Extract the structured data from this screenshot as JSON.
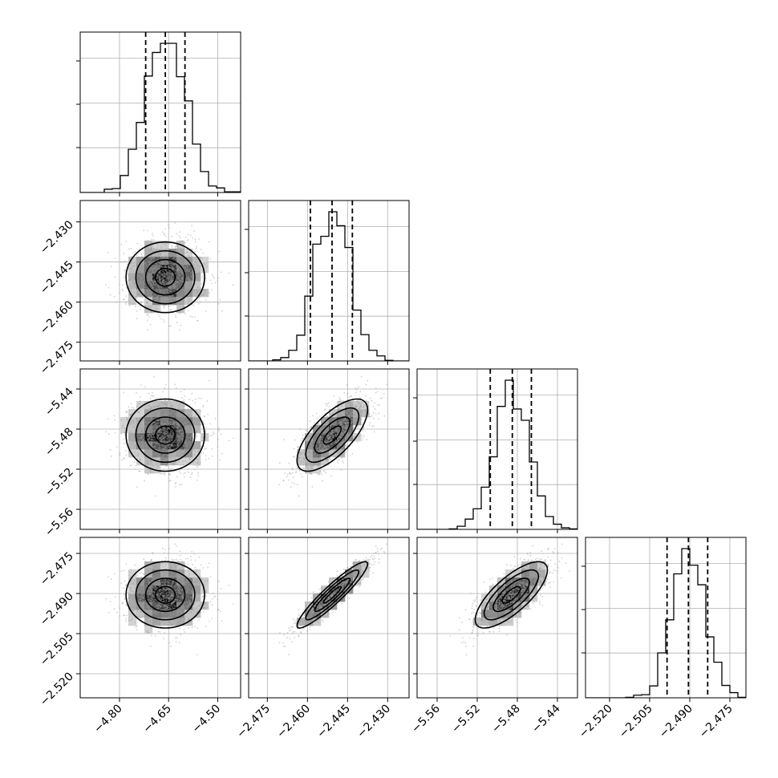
{
  "colors": {
    "background": "#ffffff",
    "frame": "#000000",
    "grid": "#b0b0b0",
    "histogram": "#000000",
    "quantile_line": "#000000",
    "sample_points": "#9a9a9a",
    "density_dark": "#000000",
    "density_light": "#f2f2f2"
  },
  "chart_data": {
    "type": "corner",
    "parameters": [
      {
        "name": "",
        "range": [
          -4.92,
          -4.43
        ],
        "ticks": [
          -4.8,
          -4.65,
          -4.5
        ],
        "tick_labels": [
          "−4.80",
          "−4.65",
          "−4.50"
        ],
        "mean": -4.66,
        "std": 0.06,
        "quantiles": [
          -4.72,
          -4.66,
          -4.6
        ]
      },
      {
        "name": "",
        "range": [
          -2.482,
          -2.422
        ],
        "ticks": [
          -2.43,
          -2.445,
          -2.46,
          -2.475
        ],
        "tick_labels": [
          "−2.430",
          "−2.445",
          "−2.460",
          "−2.475"
        ],
        "mean": -2.4507,
        "std": 0.0066,
        "quantiles": [
          -2.4589,
          -2.4508,
          -2.4432
        ]
      },
      {
        "name": "",
        "range": [
          -5.58,
          -5.42
        ],
        "ticks": [
          -5.44,
          -5.48,
          -5.52,
          -5.56
        ],
        "tick_labels": [
          "−5.44",
          "−5.48",
          "−5.52",
          "−5.56"
        ],
        "mean": -5.486,
        "std": 0.018,
        "quantiles": [
          -5.507,
          -5.485,
          -5.466
        ]
      },
      {
        "name": "",
        "range": [
          -2.529,
          -2.469
        ],
        "ticks": [
          -2.475,
          -2.49,
          -2.505,
          -2.52
        ],
        "tick_labels": [
          "−2.475",
          "−2.490",
          "−2.505",
          "−2.520"
        ],
        "mean": -2.4905,
        "std": 0.0062,
        "quantiles": [
          -2.4985,
          -2.4905,
          -2.4833
        ]
      }
    ],
    "correlations": [
      [
        1.0,
        0.0,
        0.0,
        0.0
      ],
      [
        0.0,
        1.0,
        0.7,
        0.93
      ],
      [
        0.0,
        0.7,
        1.0,
        0.75
      ],
      [
        0.0,
        0.93,
        0.75,
        1.0
      ]
    ],
    "contour_levels": [
      0.5,
      1.0,
      1.5,
      2.0
    ],
    "histogram_bins": 20,
    "samples_shown": 1500,
    "grid": true,
    "legend": "none"
  }
}
